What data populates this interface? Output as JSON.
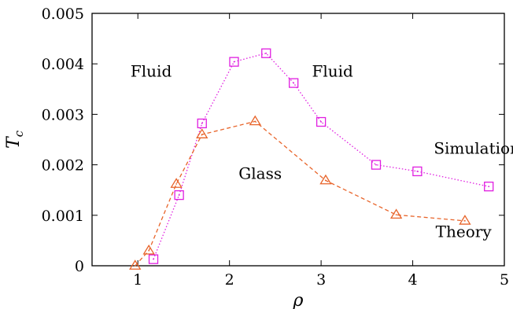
{
  "chart_data": {
    "type": "line",
    "xlabel": "ρ",
    "ylabel": "T",
    "ylabel_subscript": "c",
    "xlim": [
      0.5,
      5
    ],
    "ylim": [
      0,
      0.005
    ],
    "x_ticks": [
      1,
      2,
      3,
      4,
      5
    ],
    "x_tick_labels": [
      "1",
      "2",
      "3",
      "4",
      "5"
    ],
    "y_ticks": [
      0,
      0.001,
      0.002,
      0.003,
      0.004,
      0.005
    ],
    "y_tick_labels": [
      "0",
      "0.001",
      "0.002",
      "0.003",
      "0.004",
      "0.005"
    ],
    "grid": false,
    "series": [
      {
        "name": "Simulation",
        "color": "#e01ee0",
        "marker": "square",
        "dash": "dotted",
        "x": [
          1.17,
          1.45,
          1.7,
          2.05,
          2.4,
          2.7,
          3.0,
          3.6,
          4.05,
          4.83
        ],
        "y": [
          0.00013,
          0.0014,
          0.00282,
          0.00404,
          0.00421,
          0.00362,
          0.00285,
          0.002,
          0.00187,
          0.00157
        ]
      },
      {
        "name": "Theory",
        "color": "#e8642a",
        "marker": "triangle",
        "dash": "dashed",
        "x": [
          0.97,
          1.12,
          1.42,
          1.7,
          2.28,
          3.05,
          3.82,
          4.57
        ],
        "y": [
          0.0,
          0.0003,
          0.00162,
          0.0026,
          0.00286,
          0.00169,
          0.00101,
          0.00089
        ]
      }
    ],
    "annotations": [
      {
        "text": "Fluid",
        "x": 0.92,
        "y": 0.00375
      },
      {
        "text": "Fluid",
        "x": 2.9,
        "y": 0.00375
      },
      {
        "text": "Glass",
        "x": 2.1,
        "y": 0.00172
      },
      {
        "text": "Simulation",
        "x": 4.23,
        "y": 0.00222
      },
      {
        "text": "Theory",
        "x": 4.25,
        "y": 0.00057
      }
    ]
  }
}
